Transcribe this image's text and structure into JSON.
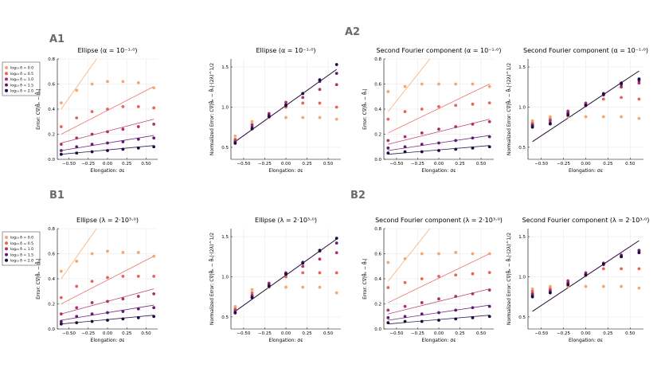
{
  "panel_labels": [
    "A1",
    "A2",
    "B1",
    "B2"
  ],
  "series_colors": [
    "#f7a76b",
    "#e8635c",
    "#b0306a",
    "#601c72",
    "#1b0c3c"
  ],
  "legend": {
    "entries": [
      "log₁₀ δ = 0.0",
      "log₁₀ δ = 0.5",
      "log₁₀ δ = 1.0",
      "log₁₀ δ = 1.5",
      "log₁₀ δ = 2.0"
    ]
  },
  "chart_data": [
    {
      "id": "A1-left",
      "type": "scatter",
      "title": "Ellipse (α = 10⁻¹·⁰)",
      "xlabel": "Elongation: σε",
      "ylabel": "Error: C∇|θ̂ₑ − θ̂ₛ|",
      "xlim": [
        -0.65,
        0.65
      ],
      "ylim": [
        0,
        0.8
      ],
      "xticks": [
        -0.5,
        -0.25,
        0.0,
        0.25,
        0.5
      ],
      "xtick_labels": [
        "−0.50",
        "−0.25",
        "0.00",
        "0.25",
        "0.50"
      ],
      "yticks": [
        0,
        0.2,
        0.4,
        0.6,
        0.8
      ],
      "ytick_labels": [
        "0.0",
        "0.2",
        "0.4",
        "0.6",
        "0.8"
      ],
      "x": [
        -0.6,
        -0.4,
        -0.2,
        0.0,
        0.2,
        0.4,
        0.6
      ],
      "series": [
        {
          "name": "log₁₀ δ = 0.0",
          "values": [
            0.45,
            0.55,
            0.6,
            0.62,
            0.62,
            0.61,
            0.57
          ],
          "fit": [
            -0.6,
            0.4,
            0.6,
            1.45
          ]
        },
        {
          "name": "log₁₀ δ = 0.5",
          "values": [
            0.26,
            0.33,
            0.38,
            0.4,
            0.42,
            0.42,
            0.41
          ],
          "fit": [
            -0.6,
            0.2,
            0.6,
            0.58
          ]
        },
        {
          "name": "log₁₀ δ = 1.0",
          "values": [
            0.12,
            0.17,
            0.2,
            0.22,
            0.24,
            0.26,
            0.28
          ],
          "fit": [
            -0.6,
            0.13,
            0.6,
            0.32
          ]
        },
        {
          "name": "log₁₀ δ = 1.5",
          "values": [
            0.07,
            0.1,
            0.12,
            0.13,
            0.14,
            0.16,
            0.17
          ],
          "fit": [
            -0.6,
            0.07,
            0.6,
            0.19
          ]
        },
        {
          "name": "log₁₀ δ = 2.0",
          "values": [
            0.04,
            0.05,
            0.06,
            0.07,
            0.08,
            0.09,
            0.1
          ],
          "fit": [
            -0.6,
            0.04,
            0.6,
            0.11
          ]
        }
      ]
    },
    {
      "id": "A1-right",
      "type": "scatter",
      "title": "Ellipse (α = 10⁻¹·⁰)",
      "xlabel": "Elongation: σε",
      "ylabel": "Normalized Error: C∇|θ̂ₑ − θ̂ₛ|·(2λ)^1/2",
      "xlim": [
        -0.65,
        0.65
      ],
      "ylim": [
        0.35,
        1.6
      ],
      "xticks": [
        -0.5,
        -0.25,
        0.0,
        0.25,
        0.5
      ],
      "xtick_labels": [
        "−0.50",
        "−0.25",
        "0.00",
        "0.25",
        "0.50"
      ],
      "yticks": [
        0.5,
        1.0,
        1.5
      ],
      "ytick_labels": [
        "0.5",
        "1.0",
        "1.5"
      ],
      "x": [
        -0.6,
        -0.4,
        -0.2,
        0.0,
        0.2,
        0.4,
        0.6
      ],
      "series": [
        {
          "name": "log₁₀ δ = 0.0",
          "values": [
            0.64,
            0.82,
            0.87,
            0.87,
            0.87,
            0.87,
            0.85
          ]
        },
        {
          "name": "log₁₀ δ = 0.5",
          "values": [
            0.6,
            0.78,
            0.9,
            1.0,
            1.05,
            1.05,
            1.0
          ]
        },
        {
          "name": "log₁₀ δ = 1.0",
          "values": [
            0.58,
            0.78,
            0.92,
            1.06,
            1.12,
            1.22,
            1.28
          ]
        },
        {
          "name": "log₁₀ δ = 1.5",
          "values": [
            0.56,
            0.75,
            0.9,
            1.03,
            1.17,
            1.32,
            1.42
          ]
        },
        {
          "name": "log₁₀ δ = 2.0",
          "values": [
            0.55,
            0.73,
            0.88,
            1.02,
            1.17,
            1.34,
            1.53
          ]
        }
      ],
      "fit_line": [
        -0.6,
        0.57,
        0.6,
        1.47
      ]
    },
    {
      "id": "A2-left",
      "type": "scatter",
      "title": "Second Fourier component (α = 10⁻¹·⁰)",
      "xlabel": "Elongation: σε",
      "ylabel": "Error: C∇|θ̂ₑ − θ̂ₛ|",
      "xlim": [
        -0.65,
        0.65
      ],
      "ylim": [
        0,
        0.8
      ],
      "xticks": [
        -0.5,
        -0.25,
        0.0,
        0.25,
        0.5
      ],
      "xtick_labels": [
        "−0.50",
        "−0.25",
        "0.00",
        "0.25",
        "0.50"
      ],
      "yticks": [
        0,
        0.2,
        0.4,
        0.6,
        0.8
      ],
      "ytick_labels": [
        "0.0",
        "0.2",
        "0.4",
        "0.6",
        "0.8"
      ],
      "x": [
        -0.6,
        -0.4,
        -0.2,
        0.0,
        0.2,
        0.4,
        0.6
      ],
      "series": [
        {
          "name": "log₁₀ δ = 0.0",
          "values": [
            0.54,
            0.58,
            0.6,
            0.6,
            0.6,
            0.6,
            0.58
          ],
          "fit": [
            -0.6,
            0.38,
            0.6,
            1.4
          ]
        },
        {
          "name": "log₁₀ δ = 0.5",
          "values": [
            0.32,
            0.38,
            0.4,
            0.42,
            0.43,
            0.44,
            0.45
          ],
          "fit": [
            -0.6,
            0.21,
            0.6,
            0.6
          ]
        },
        {
          "name": "log₁₀ δ = 1.0",
          "values": [
            0.15,
            0.18,
            0.21,
            0.24,
            0.26,
            0.28,
            0.3
          ],
          "fit": [
            -0.6,
            0.12,
            0.6,
            0.32
          ]
        },
        {
          "name": "log₁₀ δ = 1.5",
          "values": [
            0.09,
            0.1,
            0.12,
            0.13,
            0.15,
            0.17,
            0.18
          ],
          "fit": [
            -0.6,
            0.07,
            0.6,
            0.19
          ]
        },
        {
          "name": "log₁₀ δ = 2.0",
          "values": [
            0.05,
            0.06,
            0.06,
            0.07,
            0.08,
            0.09,
            0.1
          ],
          "fit": [
            -0.6,
            0.04,
            0.6,
            0.11
          ]
        }
      ]
    },
    {
      "id": "A2-right",
      "type": "scatter",
      "title": "Second Fourier component (α = 10⁻¹·⁰)",
      "xlabel": "Elongation: σε",
      "ylabel": "Normalized Error: C∇|θ̂ₑ − θ̂ₛ|·(2λ)^1/2",
      "xlim": [
        -0.65,
        0.65
      ],
      "ylim": [
        0.35,
        1.6
      ],
      "xticks": [
        -0.5,
        -0.25,
        0.0,
        0.25,
        0.5
      ],
      "xtick_labels": [
        "−0.50",
        "−0.25",
        "0.00",
        "0.25",
        "0.50"
      ],
      "yticks": [
        0.5,
        1.0,
        1.5
      ],
      "ytick_labels": [
        "0.5",
        "1.0",
        "1.5"
      ],
      "x": [
        -0.6,
        -0.4,
        -0.2,
        0.0,
        0.2,
        0.4,
        0.6
      ],
      "series": [
        {
          "name": "log₁₀ δ = 0.0",
          "values": [
            0.83,
            0.88,
            0.88,
            0.88,
            0.88,
            0.88,
            0.86
          ]
        },
        {
          "name": "log₁₀ δ = 0.5",
          "values": [
            0.8,
            0.85,
            0.93,
            1.02,
            1.1,
            1.12,
            1.1
          ]
        },
        {
          "name": "log₁₀ δ = 1.0",
          "values": [
            0.78,
            0.83,
            0.95,
            1.05,
            1.15,
            1.25,
            1.3
          ]
        },
        {
          "name": "log₁₀ δ = 1.5",
          "values": [
            0.77,
            0.8,
            0.92,
            1.03,
            1.17,
            1.28,
            1.33
          ]
        },
        {
          "name": "log₁₀ δ = 2.0",
          "values": [
            0.75,
            0.79,
            0.9,
            1.02,
            1.16,
            1.3,
            1.35
          ]
        }
      ],
      "fit_line": [
        -0.6,
        0.57,
        0.6,
        1.45
      ]
    },
    {
      "id": "B1-left",
      "type": "scatter",
      "title": "Ellipse (λ = 2·10³·⁰)",
      "xlabel": "Elongation: σε",
      "ylabel": "Error: C∇|θ̂ₑ − θ̂ₛ|",
      "xlim": [
        -0.65,
        0.65
      ],
      "ylim": [
        0,
        0.8
      ],
      "xticks": [
        -0.5,
        -0.25,
        0.0,
        0.25,
        0.5
      ],
      "xtick_labels": [
        "−0.50",
        "−0.25",
        "0.00",
        "0.25",
        "0.50"
      ],
      "yticks": [
        0,
        0.2,
        0.4,
        0.6,
        0.8
      ],
      "ytick_labels": [
        "0.0",
        "0.2",
        "0.4",
        "0.6",
        "0.8"
      ],
      "x": [
        -0.6,
        -0.4,
        -0.2,
        0.0,
        0.2,
        0.4,
        0.6
      ],
      "series": [
        {
          "name": "log₁₀ δ = 0.0",
          "values": [
            0.46,
            0.54,
            0.6,
            0.62,
            0.61,
            0.61,
            0.58
          ],
          "fit": [
            -0.6,
            0.4,
            0.6,
            1.45
          ]
        },
        {
          "name": "log₁₀ δ = 0.5",
          "values": [
            0.25,
            0.34,
            0.38,
            0.41,
            0.42,
            0.42,
            0.42
          ],
          "fit": [
            -0.6,
            0.2,
            0.6,
            0.58
          ]
        },
        {
          "name": "log₁₀ δ = 1.0",
          "values": [
            0.12,
            0.17,
            0.21,
            0.22,
            0.24,
            0.26,
            0.28
          ],
          "fit": [
            -0.6,
            0.12,
            0.6,
            0.32
          ]
        },
        {
          "name": "log₁₀ δ = 1.5",
          "values": [
            0.06,
            0.1,
            0.12,
            0.13,
            0.14,
            0.16,
            0.17
          ],
          "fit": [
            -0.6,
            0.07,
            0.6,
            0.19
          ]
        },
        {
          "name": "log₁₀ δ = 2.0",
          "values": [
            0.04,
            0.05,
            0.06,
            0.07,
            0.08,
            0.09,
            0.1
          ],
          "fit": [
            -0.6,
            0.04,
            0.6,
            0.11
          ]
        }
      ]
    },
    {
      "id": "B1-right",
      "type": "scatter",
      "title": "Ellipse (λ = 2·10³·⁰)",
      "xlabel": "Elongation: σε",
      "ylabel": "Normalized Error: C∇|θ̂ₑ − θ̂ₛ|·(2λ)^1/2",
      "xlim": [
        -0.65,
        0.65
      ],
      "ylim": [
        0.35,
        1.6
      ],
      "xticks": [
        -0.5,
        -0.25,
        0.0,
        0.25,
        0.5
      ],
      "xtick_labels": [
        "−0.50",
        "−0.25",
        "0.00",
        "0.25",
        "0.50"
      ],
      "yticks": [
        0.5,
        1.0,
        1.5
      ],
      "ytick_labels": [
        "0.5",
        "1.0",
        "1.5"
      ],
      "x": [
        -0.6,
        -0.4,
        -0.2,
        0.0,
        0.2,
        0.4,
        0.6
      ],
      "series": [
        {
          "name": "log₁₀ δ = 0.0",
          "values": [
            0.63,
            0.84,
            0.87,
            0.87,
            0.87,
            0.87,
            0.8
          ]
        },
        {
          "name": "log₁₀ δ = 0.5",
          "values": [
            0.6,
            0.8,
            0.9,
            1.0,
            1.05,
            1.05,
            1.05
          ]
        },
        {
          "name": "log₁₀ δ = 1.0",
          "values": [
            0.58,
            0.77,
            0.92,
            1.05,
            1.13,
            1.22,
            1.3
          ]
        },
        {
          "name": "log₁₀ δ = 1.5",
          "values": [
            0.56,
            0.75,
            0.9,
            1.04,
            1.18,
            1.32,
            1.42
          ]
        },
        {
          "name": "log₁₀ δ = 2.0",
          "values": [
            0.55,
            0.74,
            0.88,
            1.03,
            1.17,
            1.33,
            1.48
          ]
        }
      ],
      "fit_line": [
        -0.6,
        0.57,
        0.6,
        1.47
      ]
    },
    {
      "id": "B2-left",
      "type": "scatter",
      "title": "Second Fourier component (λ = 2·10³·⁰)",
      "xlabel": "Elongation: σε",
      "ylabel": "Error: C∇|θ̂ₑ − θ̂ₛ|",
      "xlim": [
        -0.65,
        0.65
      ],
      "ylim": [
        0,
        0.8
      ],
      "xticks": [
        -0.5,
        -0.25,
        0.0,
        0.25,
        0.5
      ],
      "xtick_labels": [
        "−0.50",
        "−0.25",
        "0.00",
        "0.25",
        "0.50"
      ],
      "yticks": [
        0,
        0.2,
        0.4,
        0.6,
        0.8
      ],
      "ytick_labels": [
        "0.0",
        "0.2",
        "0.4",
        "0.6",
        "0.8"
      ],
      "x": [
        -0.6,
        -0.4,
        -0.2,
        0.0,
        0.2,
        0.4,
        0.6
      ],
      "series": [
        {
          "name": "log₁₀ δ = 0.0",
          "values": [
            0.53,
            0.56,
            0.6,
            0.6,
            0.61,
            0.6,
            0.6
          ],
          "fit": [
            -0.6,
            0.38,
            0.6,
            1.4
          ]
        },
        {
          "name": "log₁₀ δ = 0.5",
          "values": [
            0.33,
            0.37,
            0.4,
            0.42,
            0.43,
            0.44,
            0.45
          ],
          "fit": [
            -0.6,
            0.21,
            0.6,
            0.6
          ]
        },
        {
          "name": "log₁₀ δ = 1.0",
          "values": [
            0.15,
            0.18,
            0.21,
            0.24,
            0.26,
            0.28,
            0.31
          ],
          "fit": [
            -0.6,
            0.12,
            0.6,
            0.32
          ]
        },
        {
          "name": "log₁₀ δ = 1.5",
          "values": [
            0.09,
            0.1,
            0.12,
            0.13,
            0.15,
            0.17,
            0.18
          ],
          "fit": [
            -0.6,
            0.07,
            0.6,
            0.19
          ]
        },
        {
          "name": "log₁₀ δ = 2.0",
          "values": [
            0.05,
            0.06,
            0.06,
            0.07,
            0.08,
            0.09,
            0.1
          ],
          "fit": [
            -0.6,
            0.04,
            0.6,
            0.11
          ]
        }
      ]
    },
    {
      "id": "B2-right",
      "type": "scatter",
      "title": "Second Fourier component (λ = 2·10³·⁰)",
      "xlabel": "Elongation: σε",
      "ylabel": "Normalized Error: C∇|θ̂ₑ − θ̂ₛ|·(2λ)^1/2",
      "xlim": [
        -0.65,
        0.65
      ],
      "ylim": [
        0.35,
        1.6
      ],
      "xticks": [
        -0.5,
        -0.25,
        0.0,
        0.25,
        0.5
      ],
      "xtick_labels": [
        "−0.50",
        "−0.25",
        "0.00",
        "0.25",
        "0.50"
      ],
      "yticks": [
        0.5,
        1.0,
        1.5
      ],
      "ytick_labels": [
        "0.5",
        "1.0",
        "1.5"
      ],
      "x": [
        -0.6,
        -0.4,
        -0.2,
        0.0,
        0.2,
        0.4,
        0.6
      ],
      "series": [
        {
          "name": "log₁₀ δ = 0.0",
          "values": [
            0.85,
            0.88,
            0.88,
            0.88,
            0.88,
            0.88,
            0.86
          ]
        },
        {
          "name": "log₁₀ δ = 0.5",
          "values": [
            0.82,
            0.85,
            0.93,
            1.02,
            1.1,
            1.1,
            1.1
          ]
        },
        {
          "name": "log₁₀ δ = 1.0",
          "values": [
            0.79,
            0.83,
            0.95,
            1.05,
            1.15,
            1.25,
            1.32
          ]
        },
        {
          "name": "log₁₀ δ = 1.5",
          "values": [
            0.77,
            0.81,
            0.92,
            1.03,
            1.17,
            1.27,
            1.33
          ]
        },
        {
          "name": "log₁₀ δ = 2.0",
          "values": [
            0.75,
            0.8,
            0.9,
            1.02,
            1.16,
            1.25,
            1.3
          ]
        }
      ],
      "fit_line": [
        -0.6,
        0.57,
        0.6,
        1.45
      ]
    }
  ]
}
